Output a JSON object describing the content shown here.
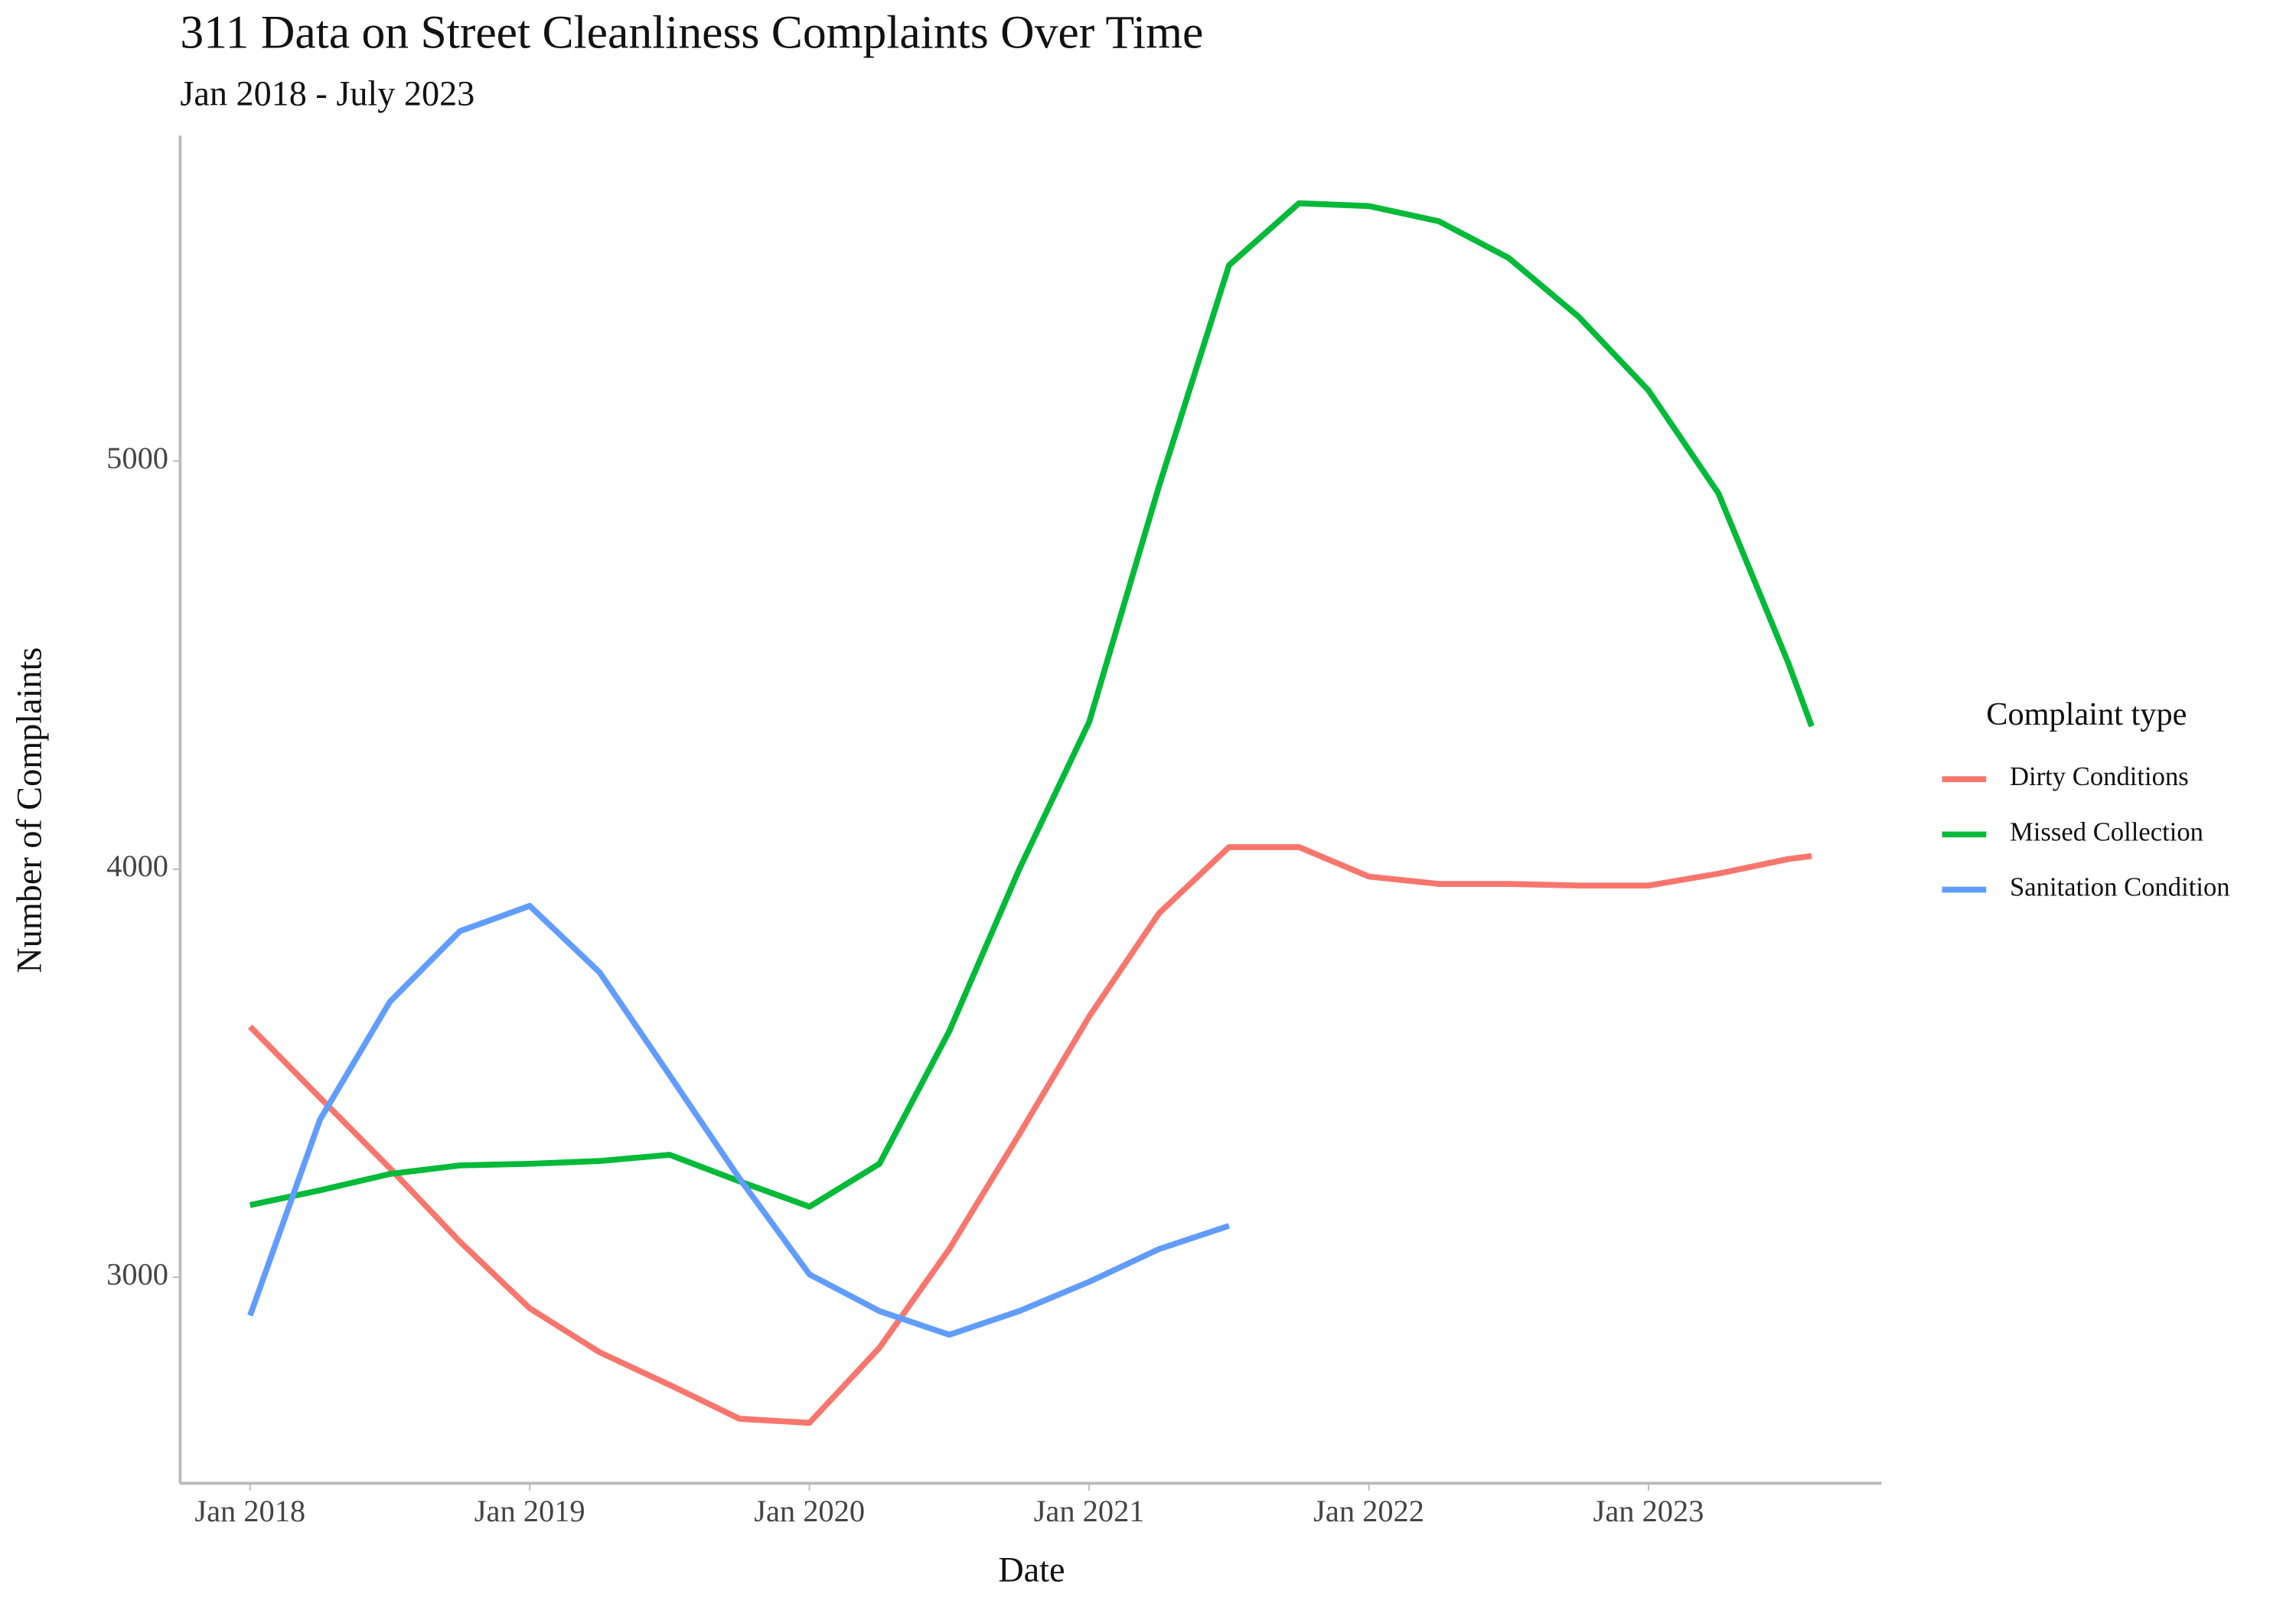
{
  "chart_data": {
    "type": "line",
    "title": "311 Data on Street Cleanliness Complaints Over Time",
    "subtitle": "Jan 2018 - July 2023",
    "x_label": "Date",
    "y_label": "Number of Complaints",
    "legend_title": "Complaint type",
    "legend": "right",
    "x": [
      "2018-01",
      "2018-04",
      "2018-07",
      "2018-10",
      "2019-01",
      "2019-04",
      "2019-07",
      "2019-10",
      "2020-01",
      "2020-04",
      "2020-07",
      "2020-10",
      "2021-01",
      "2021-04",
      "2021-07",
      "2021-10",
      "2022-01",
      "2022-04",
      "2022-07",
      "2022-10",
      "2023-01",
      "2023-04",
      "2023-07",
      "2023-08"
    ],
    "series": [
      {
        "name": "Dirty Conditions",
        "color": "#F8766D",
        "values": [
          3614,
          3440,
          3267,
          3087,
          2924,
          2816,
          2736,
          2653,
          2643,
          2827,
          3069,
          3350,
          3639,
          3892,
          4054,
          4054,
          3982,
          3964,
          3964,
          3960,
          3960,
          3989,
          4025,
          4032
        ]
      },
      {
        "name": "Missed Collection",
        "color": "#00BA38",
        "values": [
          3177,
          3213,
          3253,
          3274,
          3278,
          3285,
          3300,
          3235,
          3173,
          3278,
          3603,
          4000,
          4361,
          4939,
          5480,
          5632,
          5625,
          5588,
          5498,
          5354,
          5173,
          4921,
          4505,
          4350
        ]
      },
      {
        "name": "Sanitation Condition",
        "color": "#619CFF",
        "values": [
          2906,
          3386,
          3675,
          3848,
          3910,
          3747,
          3495,
          3242,
          3007,
          2917,
          2859,
          2917,
          2989,
          3069,
          3126,
          null,
          null,
          null,
          null,
          null,
          null,
          null,
          null,
          null
        ]
      }
    ],
    "xlim": [
      "2017-10",
      "2023-11"
    ],
    "xticks": [
      {
        "value": "2018-01",
        "label": "Jan 2018"
      },
      {
        "value": "2019-01",
        "label": "Jan 2019"
      },
      {
        "value": "2020-01",
        "label": "Jan 2020"
      },
      {
        "value": "2021-01",
        "label": "Jan 2021"
      },
      {
        "value": "2022-01",
        "label": "Jan 2022"
      },
      {
        "value": "2023-01",
        "label": "Jan 2023"
      }
    ],
    "ylim": [
      2495,
      5798
    ],
    "yticks": [
      3000,
      4000,
      5000
    ],
    "grid": false
  }
}
